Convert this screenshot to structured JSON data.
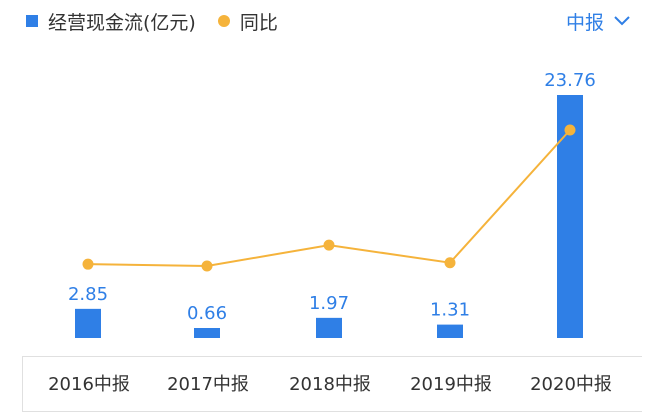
{
  "legend": {
    "bar_label": "经营现金流(亿元)",
    "line_label": "同比"
  },
  "period_selector": {
    "label": "中报",
    "icon": "chevron-down-icon"
  },
  "colors": {
    "bar": "#2f7fe6",
    "line": "#f5b33b",
    "accent": "#2f7fe6"
  },
  "chart_data": {
    "type": "bar",
    "categories": [
      "2016中报",
      "2017中报",
      "2018中报",
      "2019中报",
      "2020中报"
    ],
    "series": [
      {
        "name": "经营现金流(亿元)",
        "type": "bar",
        "values": [
          2.85,
          0.66,
          1.97,
          1.31,
          23.76
        ],
        "labels": [
          "2.85",
          "0.66",
          "1.97",
          "1.31",
          "23.76"
        ]
      },
      {
        "name": "同比",
        "type": "line",
        "values": [
          -53,
          -77,
          198,
          -34,
          1714
        ]
      }
    ],
    "ylim": [
      0,
      23.76
    ],
    "grid": false,
    "legend_position": "top-left"
  }
}
